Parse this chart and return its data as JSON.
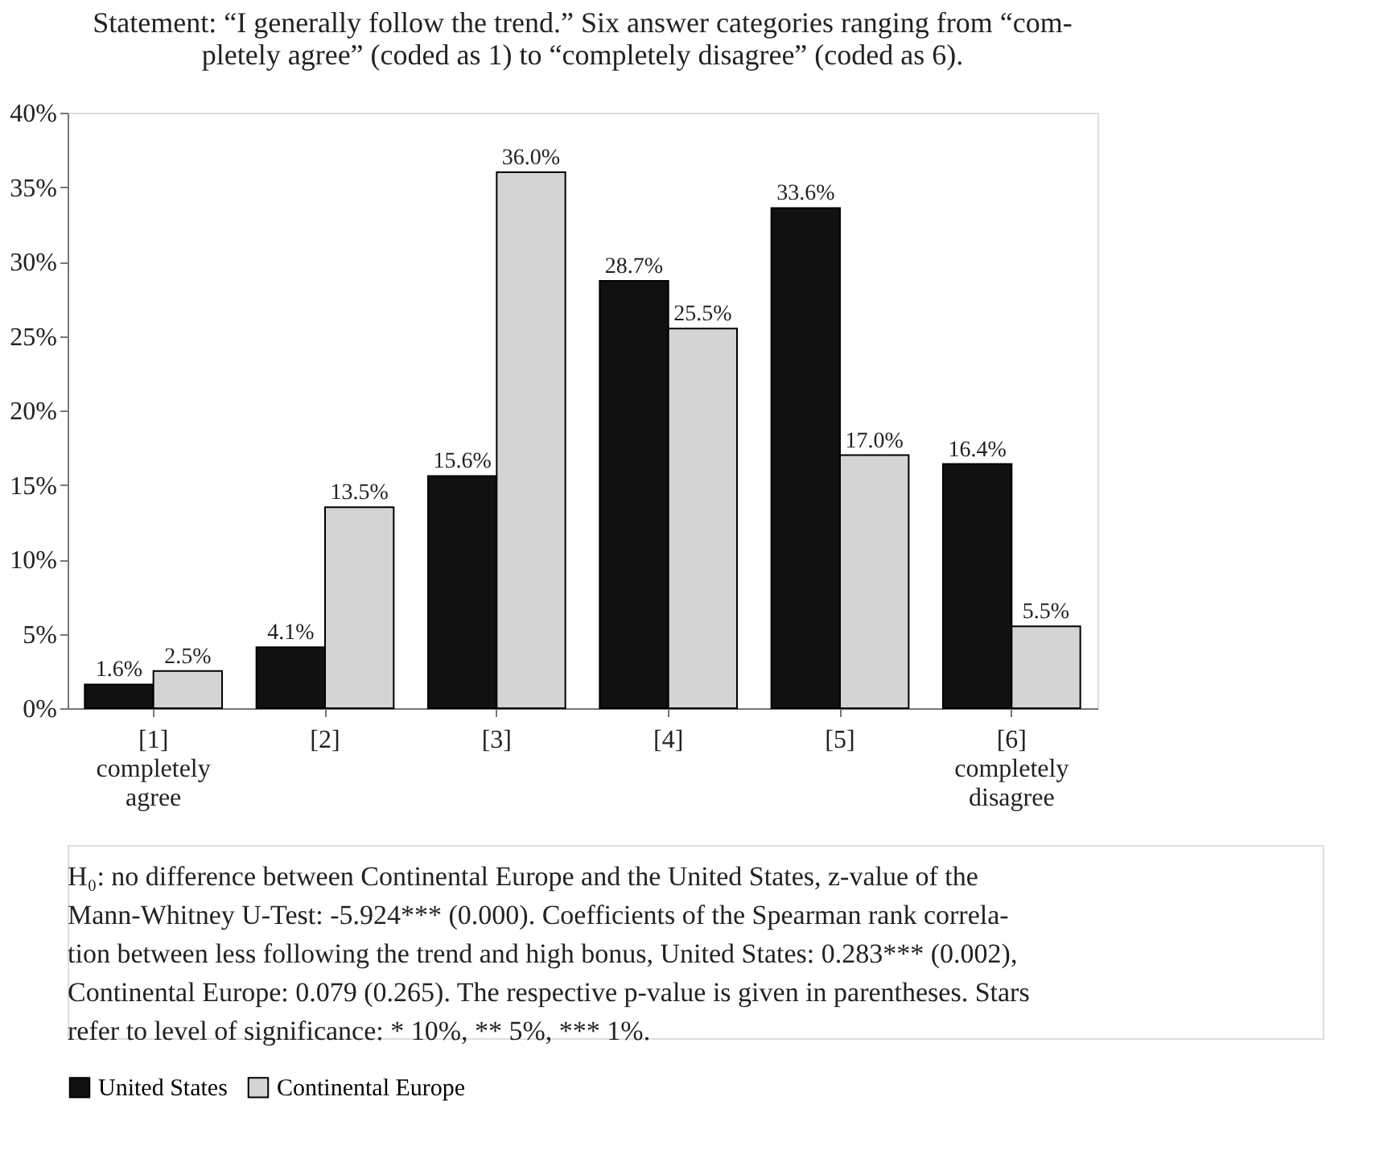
{
  "chart_data": {
    "type": "bar",
    "title": "Statement:  “I generally follow the trend.” Six answer categories ranging from “com-\npletely agree” (coded as 1) to “completely disagree” (coded as 6).",
    "categories": [
      "[1]\ncompletely\nagree",
      "[2]",
      "[3]",
      "[4]",
      "[5]",
      "[6]\ncompletely\ndisagree"
    ],
    "series": [
      {
        "name": "United States",
        "color": "#111111",
        "values": [
          1.6,
          4.1,
          15.6,
          28.7,
          33.6,
          16.4
        ],
        "value_labels": [
          "1.6%",
          "4.1%",
          "15.6%",
          "28.7%",
          "33.6%",
          "16.4%"
        ]
      },
      {
        "name": "Continental Europe",
        "color": "#d4d4d4",
        "values": [
          2.5,
          13.5,
          36.0,
          25.5,
          17.0,
          5.5
        ],
        "value_labels": [
          "2.5%",
          "13.5%",
          "36.0%",
          "25.5%",
          "17.0%",
          "5.5%"
        ]
      }
    ],
    "ylim": [
      0,
      40
    ],
    "yticks": [
      {
        "value": 0,
        "label": "0%"
      },
      {
        "value": 5,
        "label": "5%"
      },
      {
        "value": 10,
        "label": "10%"
      },
      {
        "value": 15,
        "label": "15%"
      },
      {
        "value": 20,
        "label": "20%"
      },
      {
        "value": 25,
        "label": "25%"
      },
      {
        "value": 30,
        "label": "30%"
      },
      {
        "value": 35,
        "label": "35%"
      },
      {
        "value": 40,
        "label": "40%"
      }
    ],
    "grid": false,
    "legend": "bottom",
    "annotations": [
      "H₀: no difference between Continental Europe and the United States, z-value of the\nMann-Whitney U-Test: -5.924*** (0.000). Coefficients of the Spearman rank correla-\ntion between less following the trend and high bonus, United States: 0.283*** (0.002),\nContinental Europe: 0.079 (0.265). The respective p-value is given in parentheses. Stars\nrefer to level of significance: * 10%, ** 5%, *** 1%."
    ]
  }
}
